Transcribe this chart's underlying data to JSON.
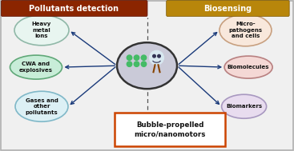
{
  "title_left": "Pollutants detection",
  "title_right": "Biosensing",
  "title_left_bg": "#8B2500",
  "title_right_bg": "#B8860B",
  "title_text_color": "#FFFFFF",
  "center_label": "Bubble-propelled\nmicro/nanomotors",
  "center_label_border": "#CC4400",
  "center_label_bg": "#FFFFFF",
  "left_items": [
    "Heavy\nmetal\nions",
    "CWA and\nexplosives",
    "Gases and\nother\npollutants"
  ],
  "right_items": [
    "Micro-\npathogens\nand cells",
    "Biomolecules",
    "Biomarkers"
  ],
  "left_colors": [
    "#E8F5F0",
    "#C8EDD8",
    "#DCF0F5"
  ],
  "right_colors": [
    "#F8E8DC",
    "#F4D8D5",
    "#E8DCEF"
  ],
  "left_border_colors": [
    "#90B8A8",
    "#60A878",
    "#80B8C8"
  ],
  "right_border_colors": [
    "#C8A080",
    "#B88080",
    "#A898C0"
  ],
  "bg_color": "#F0F0F0",
  "border_color": "#B0B0B0",
  "arrow_color": "#1A3A7A",
  "dashed_line_color": "#555555",
  "center_ellipse_color": "#CACAD8",
  "center_ellipse_border": "#333333",
  "figw": 3.67,
  "figh": 1.89,
  "dpi": 100
}
